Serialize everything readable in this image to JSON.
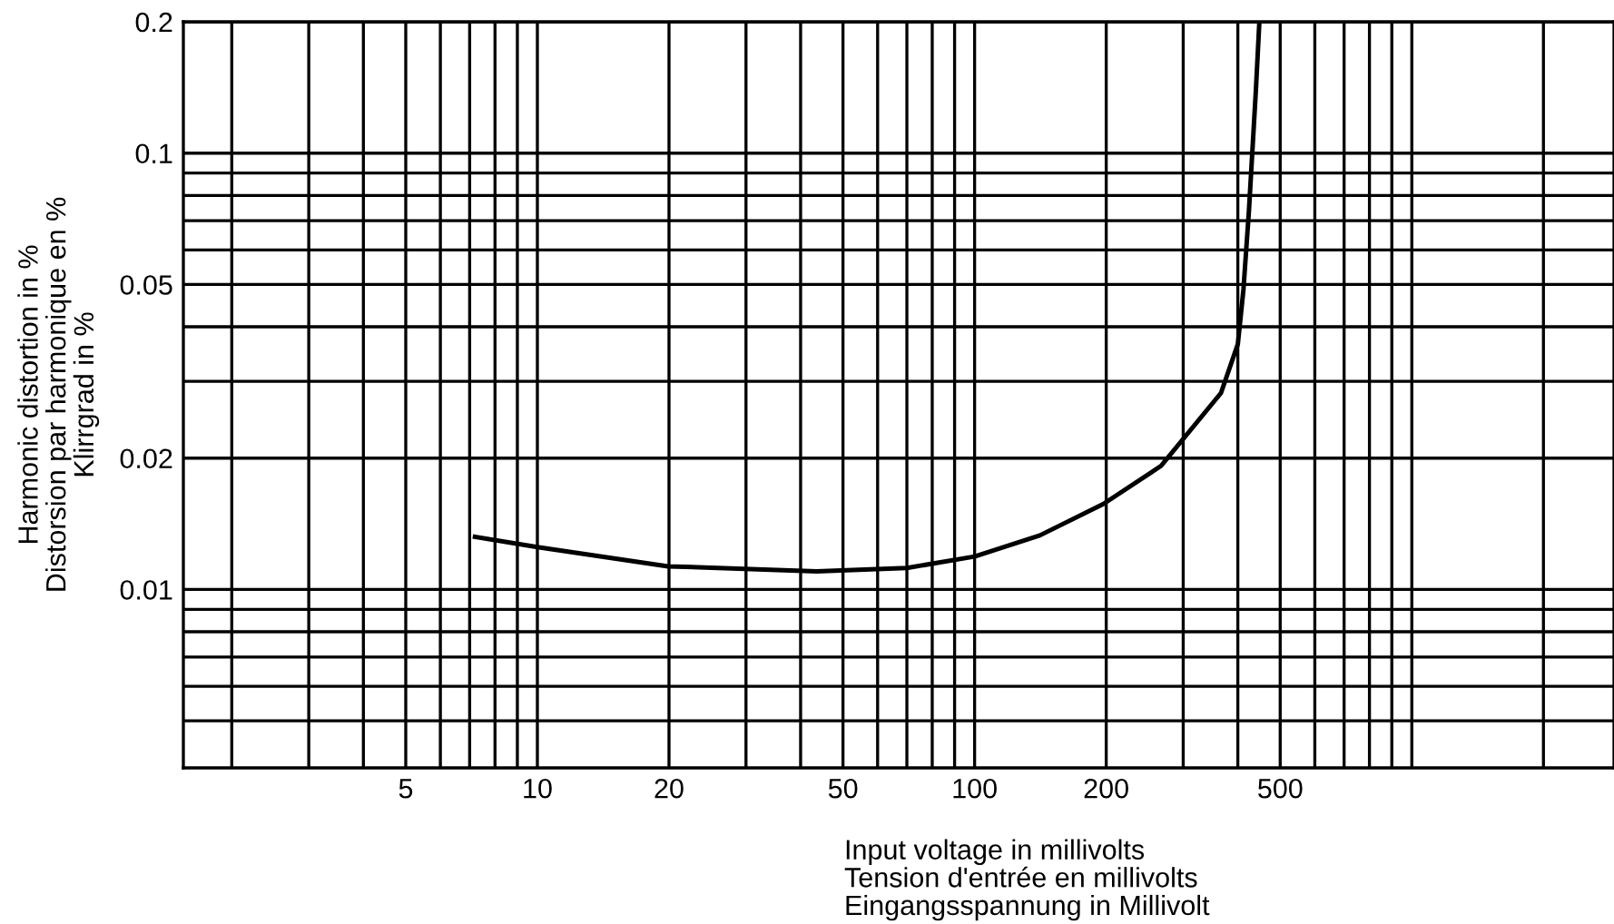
{
  "chart_data": {
    "type": "line",
    "xlabel": "Input voltage in millivolts\nTension d'entrée en millivolts\nEingangsspannung in Millivolt",
    "ylabel": "Harmonic distortion in %\nDistorsion par harmonique en %\nKlirrgrad in %",
    "log": "xy",
    "grid": true,
    "marker": "none",
    "line_style": "solid",
    "xlim": [
      1.55,
      2900
    ],
    "ylim": [
      0.0039,
      0.2
    ],
    "xticks": [
      {
        "value": 2,
        "label": null
      },
      {
        "value": 3,
        "label": null
      },
      {
        "value": 4,
        "label": null
      },
      5,
      {
        "value": 6,
        "label": null
      },
      {
        "value": 7,
        "label": null
      },
      {
        "value": 8,
        "label": null
      },
      {
        "value": 9,
        "label": null
      },
      10,
      20,
      {
        "value": 30,
        "label": null
      },
      {
        "value": 40,
        "label": null
      },
      50,
      {
        "value": 60,
        "label": null
      },
      {
        "value": 70,
        "label": null
      },
      {
        "value": 80,
        "label": null
      },
      {
        "value": 90,
        "label": null
      },
      100,
      200,
      {
        "value": 300,
        "label": null
      },
      {
        "value": 400,
        "label": null
      },
      500,
      {
        "value": 600,
        "label": null
      },
      {
        "value": 700,
        "label": null
      },
      {
        "value": 800,
        "label": null
      },
      {
        "value": 900,
        "label": null
      },
      {
        "value": 1000,
        "label": null
      },
      {
        "value": 2000,
        "label": null
      }
    ],
    "yticks": [
      {
        "value": 0.005,
        "label": null
      },
      {
        "value": 0.006,
        "label": null
      },
      {
        "value": 0.007,
        "label": null
      },
      {
        "value": 0.008,
        "label": null
      },
      {
        "value": 0.009,
        "label": null
      },
      0.01,
      0.02,
      {
        "value": 0.03,
        "label": null
      },
      {
        "value": 0.04,
        "label": null
      },
      0.05,
      {
        "value": 0.06,
        "label": null
      },
      {
        "value": 0.07,
        "label": null
      },
      {
        "value": 0.08,
        "label": null
      },
      {
        "value": 0.09,
        "label": null
      },
      0.1,
      0.2
    ],
    "series": [
      {
        "color": "#000000",
        "x": [
          7.2,
          10,
          19.9,
          43.5,
          70,
          100,
          141,
          197,
          267,
          366,
          400,
          412,
          424,
          440,
          448
        ],
        "values": [
          0.0132,
          0.0125,
          0.0113,
          0.011,
          0.0112,
          0.0119,
          0.0133,
          0.0157,
          0.0192,
          0.0282,
          0.0365,
          0.0487,
          0.0736,
          0.14,
          0.2
        ]
      }
    ]
  }
}
